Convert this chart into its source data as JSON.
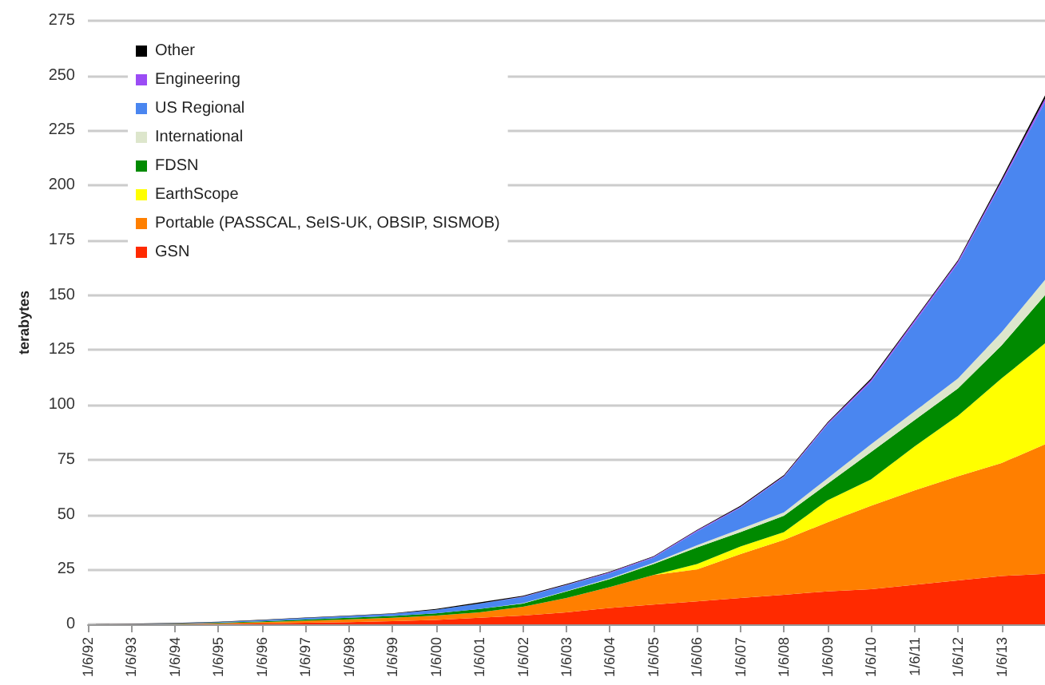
{
  "chart_data": {
    "type": "area",
    "stacked": true,
    "ylabel": "terabytes",
    "categories": [
      "1/6/92",
      "1/6/93",
      "1/6/94",
      "1/6/95",
      "1/6/96",
      "1/6/97",
      "1/6/98",
      "1/6/99",
      "1/6/00",
      "1/6/01",
      "1/6/02",
      "1/6/03",
      "1/6/04",
      "1/6/05",
      "1/6/06",
      "1/6/07",
      "1/6/08",
      "1/6/09",
      "1/6/10",
      "1/6/11",
      "1/6/12",
      "1/6/13",
      null
    ],
    "series": [
      {
        "name": "GSN",
        "color": "#ff2a00",
        "values": [
          0,
          0,
          0.1,
          0.2,
          0.4,
          0.7,
          1,
          1.5,
          2,
          3,
          4,
          5.5,
          7.5,
          9,
          10.5,
          12,
          13.5,
          15,
          16,
          18,
          20,
          22,
          23
        ]
      },
      {
        "name": "Portable (PASSCAL, SeIS-UK, OBSIP, SISMOB)",
        "color": "#ff7f00",
        "values": [
          0,
          0.1,
          0.1,
          0.3,
          0.6,
          0.9,
          1.3,
          1.5,
          2,
          2.5,
          4,
          6.5,
          9.5,
          13.5,
          14.5,
          20,
          25,
          31.5,
          38,
          43,
          47.5,
          51.5,
          59
        ]
      },
      {
        "name": "EarthScope",
        "color": "#ffff00",
        "values": [
          0,
          0,
          0,
          0,
          0,
          0,
          0,
          0,
          0,
          0,
          0,
          0,
          0,
          0,
          2.5,
          3.5,
          3.5,
          10,
          12,
          20,
          27.5,
          38.5,
          46
        ]
      },
      {
        "name": "FDSN",
        "color": "#008a00",
        "values": [
          0,
          0,
          0.1,
          0.2,
          0.4,
          0.6,
          0.7,
          0.8,
          1,
          1.5,
          1.5,
          3,
          3.6,
          5,
          7.5,
          6.5,
          7.5,
          7.5,
          12.5,
          12,
          12.5,
          15,
          22
        ]
      },
      {
        "name": "International",
        "color": "#dde6cc",
        "values": [
          0,
          0,
          0,
          0,
          0,
          0,
          0,
          0,
          0,
          0,
          0.1,
          0.2,
          0.4,
          0.5,
          1,
          1.5,
          1.5,
          2.5,
          3.5,
          4,
          4.5,
          6,
          7
        ]
      },
      {
        "name": "US Regional",
        "color": "#4a86f0",
        "values": [
          0,
          0.1,
          0.2,
          0.3,
          0.5,
          0.7,
          0.8,
          1,
          1.6,
          2.5,
          2.9,
          2.6,
          2.4,
          2.4,
          6.3,
          9.7,
          16.2,
          24.5,
          28.5,
          40.5,
          52.5,
          68,
          81
        ]
      },
      {
        "name": "Engineering",
        "color": "#9b4cf5",
        "values": [
          0,
          0,
          0,
          0,
          0,
          0,
          0,
          0,
          0,
          0,
          0.1,
          0.2,
          0.3,
          0.3,
          0.4,
          0.4,
          0.4,
          0.6,
          0.8,
          0.9,
          0.9,
          1,
          1.5
        ]
      },
      {
        "name": "Other",
        "color": "#000000",
        "values": [
          0,
          0.1,
          0.1,
          0.2,
          0.2,
          0.2,
          0.2,
          0.2,
          0.4,
          0.5,
          0.4,
          0.4,
          0.3,
          0.3,
          0.3,
          0.4,
          0.4,
          0.4,
          0.7,
          0.6,
          0.6,
          1,
          1.5
        ]
      }
    ],
    "ylim": [
      0,
      275
    ],
    "yticks": [
      0,
      25,
      50,
      75,
      100,
      125,
      150,
      175,
      200,
      225,
      250,
      275
    ],
    "grid": "y",
    "legend": "top left"
  }
}
